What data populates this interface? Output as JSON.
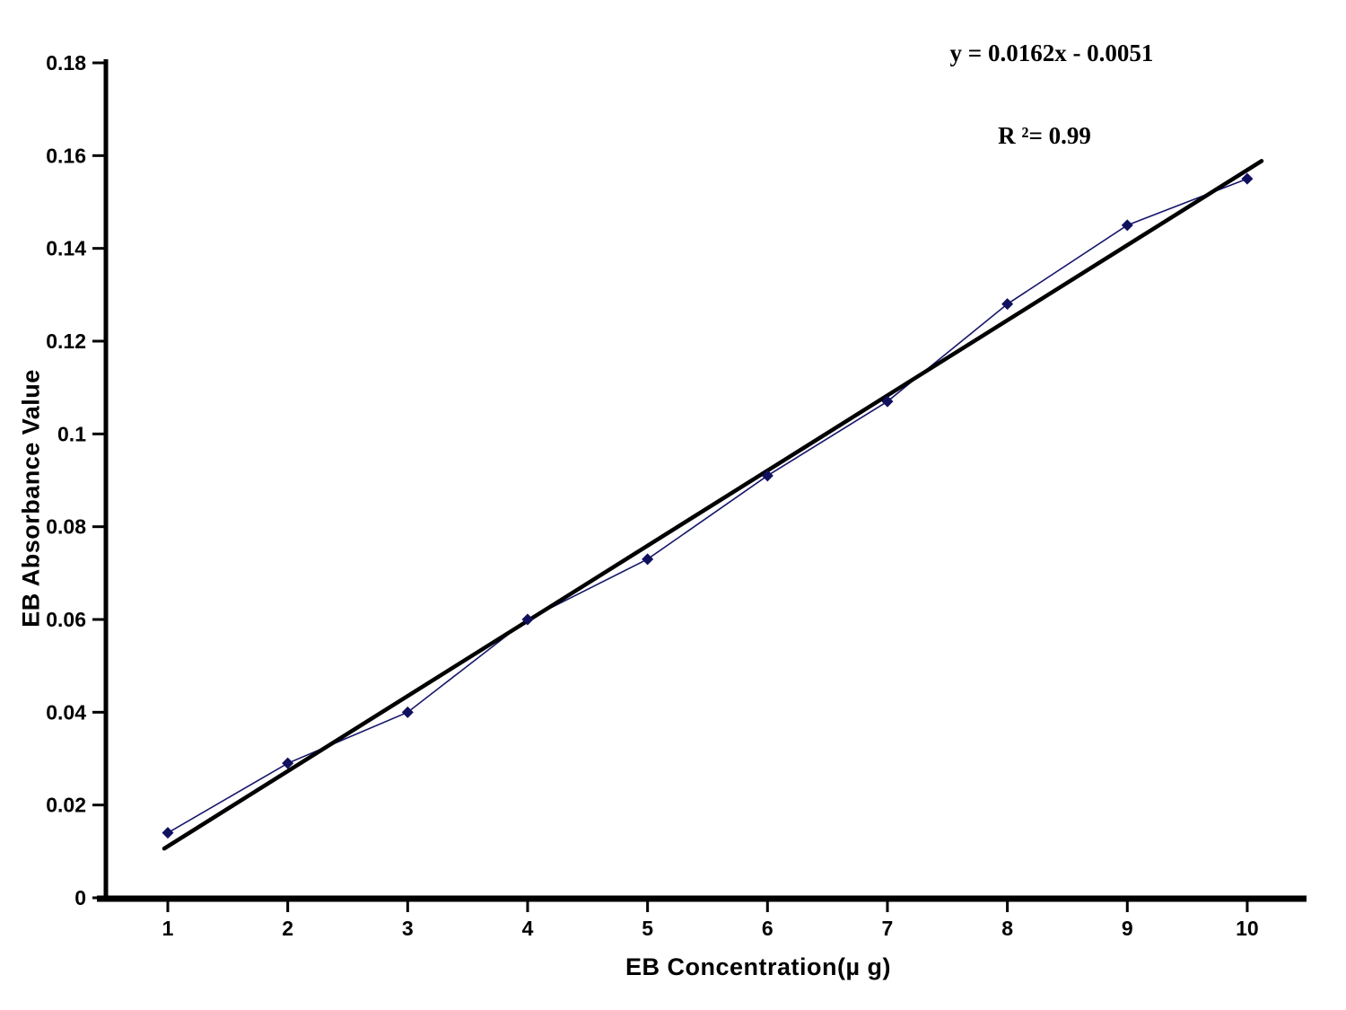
{
  "chart_data": {
    "type": "scatter",
    "title": "",
    "xlabel": "EB Concentration(µ g)",
    "ylabel": "EB Absorbance Value",
    "x": [
      1,
      2,
      3,
      4,
      5,
      6,
      7,
      8,
      9,
      10
    ],
    "series": [
      {
        "name": "EB absorbance",
        "values": [
          0.014,
          0.029,
          0.04,
          0.06,
          0.073,
          0.091,
          0.107,
          0.128,
          0.145,
          0.155
        ]
      }
    ],
    "trendline": {
      "slope": 0.0162,
      "intercept": -0.0051,
      "x_start": 0.97,
      "x_end": 10.12
    },
    "annotations": {
      "equation": "y = 0.0162x -  0.0051",
      "r_squared": "R ²= 0.99"
    },
    "xlim": [
      0.5,
      10.5
    ],
    "ylim": [
      0,
      0.18
    ],
    "x_ticks": [
      "1",
      "2",
      "3",
      "4",
      "5",
      "6",
      "7",
      "8",
      "9",
      "10"
    ],
    "y_ticks": [
      "0",
      "0.02",
      "0.04",
      "0.06",
      "0.08",
      "0.1",
      "0.12",
      "0.14",
      "0.16",
      "0.18"
    ],
    "y_tick_values": [
      0,
      0.02,
      0.04,
      0.06,
      0.08,
      0.1,
      0.12,
      0.14,
      0.16,
      0.18
    ],
    "grid": false,
    "legend": "none",
    "colors": {
      "series": "#16166b",
      "marker": "#10105e",
      "trendline": "#000000",
      "axis": "#000000",
      "text": "#000000"
    }
  }
}
